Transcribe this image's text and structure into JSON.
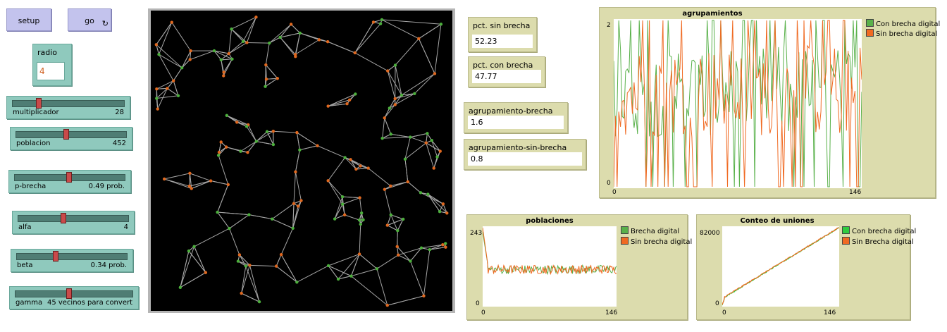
{
  "buttons": {
    "setup_label": "setup",
    "go_label": "go",
    "go_forever_glyph": "↻"
  },
  "radio": {
    "label": "radio",
    "value": "4"
  },
  "sliders": [
    {
      "name": "multiplicador",
      "value": "28",
      "fraction": 0.22
    },
    {
      "name": "poblacion",
      "value": "452",
      "fraction": 0.45
    },
    {
      "name": "p-brecha",
      "value": "0.49 prob.",
      "fraction": 0.49
    },
    {
      "name": "alfa",
      "value": "4",
      "fraction": 0.4
    },
    {
      "name": "beta",
      "value": "0.34 prob.",
      "fraction": 0.34
    },
    {
      "name": "gamma",
      "value": "45 vecinos para convert",
      "fraction": 0.45
    }
  ],
  "monitors": [
    {
      "label": "pct. sin brecha",
      "value": "52.23"
    },
    {
      "label": "pct. con brecha",
      "value": "47.77"
    },
    {
      "label": "agrupamiento-brecha",
      "value": "1.6"
    },
    {
      "label": "agrupamiento-sin-brecha",
      "value": "0.8"
    }
  ],
  "colors": {
    "green": "#59b14a",
    "orange": "#f06a22",
    "link": "#a6a6a6",
    "world_bg": "#000000",
    "node_green": "#4caf3c",
    "node_orange": "#e0681f"
  },
  "plots": {
    "agrupamientos": {
      "title": "agrupamientos",
      "legend": [
        {
          "name": "Con brecha digital",
          "color": "#59b14a"
        },
        {
          "name": "Sin brecha digital",
          "color": "#f06a22"
        }
      ],
      "y_min": "0",
      "y_max": "2",
      "x_min": "0",
      "x_max": "146"
    },
    "poblaciones": {
      "title": "poblaciones",
      "legend": [
        {
          "name": "Brecha digital",
          "color": "#59b14a"
        },
        {
          "name": "Sin brecha digital",
          "color": "#f06a22"
        }
      ],
      "y_min": "0",
      "y_max": "243",
      "x_min": "0",
      "x_max": "146"
    },
    "uniones": {
      "title": "Conteo de uniones",
      "legend": [
        {
          "name": "Con brecha digital",
          "color": "#2fcc3f"
        },
        {
          "name": "Sin Brecha digital",
          "color": "#f06a22"
        }
      ],
      "y_min": "0",
      "y_max": "82000",
      "x_min": "0",
      "x_max": "146"
    }
  }
}
